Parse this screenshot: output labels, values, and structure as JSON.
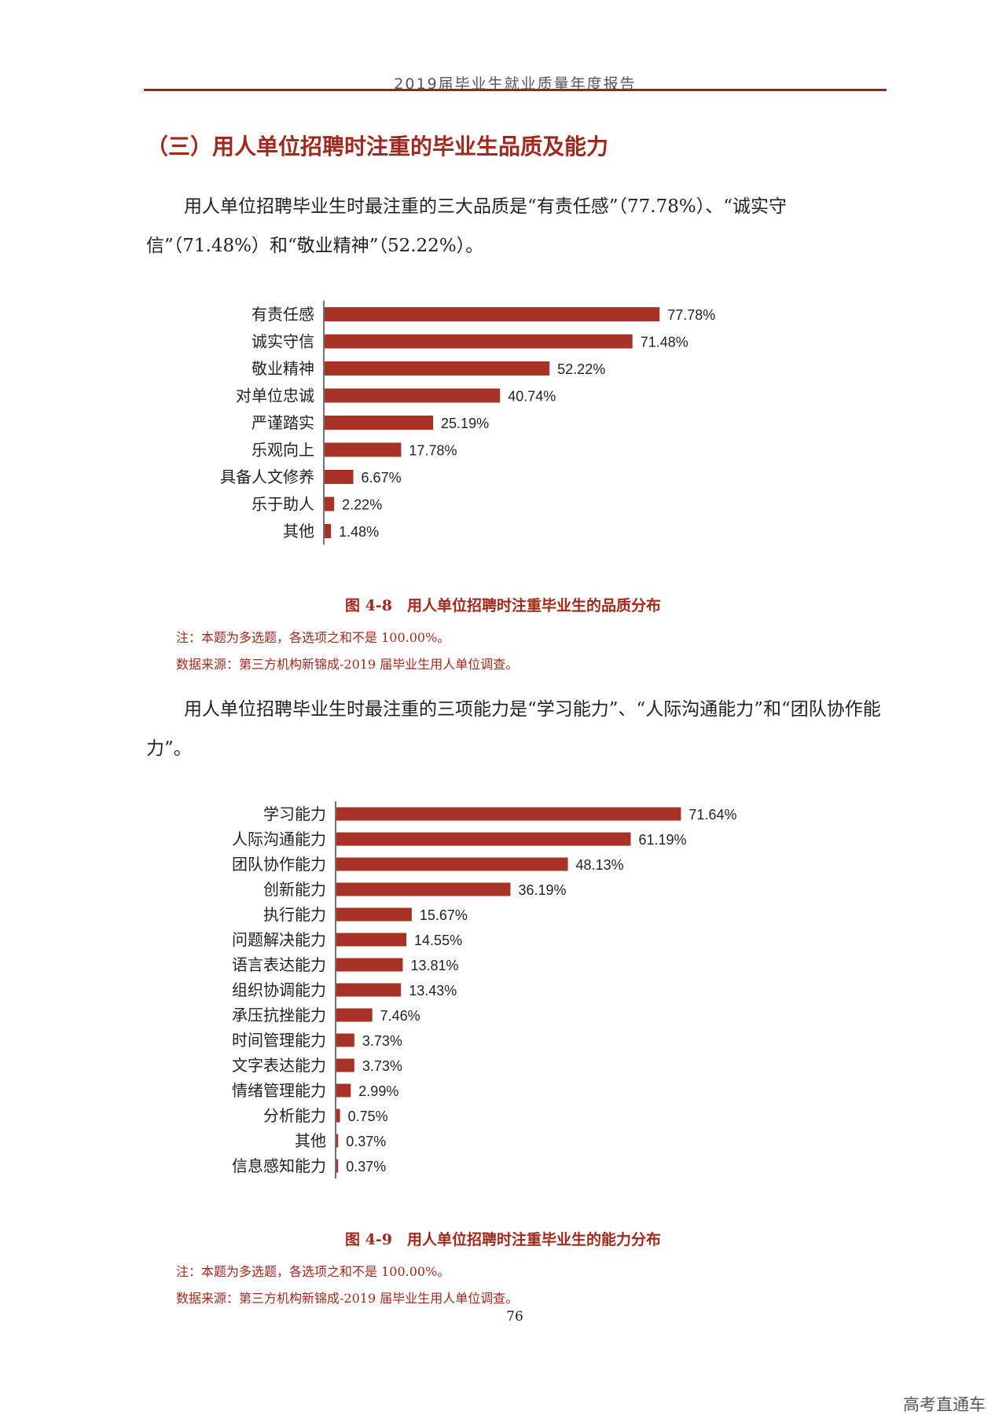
{
  "header": {
    "title": "2019届毕业生就业质量年度报告"
  },
  "section": {
    "title": "（三）用人单位招聘时注重的毕业生品质及能力"
  },
  "para1": "用人单位招聘毕业生时最注重的三大品质是“有责任感”（77.78%）、“诚实守信”（71.48%）和“敬业精神”（52.22%）。",
  "para2": "用人单位招聘毕业生时最注重的三项能力是“学习能力”、“人际沟通能力”和“团队协作能力”。",
  "figures": [
    {
      "caption": "图 4-8　用人单位招聘时注重毕业生的品质分布",
      "note": "注：本题为多选题，各选项之和不是 100.00%。",
      "source": "数据来源：第三方机构新锦成-2019 届毕业生用人单位调查。"
    },
    {
      "caption": "图 4-9　用人单位招聘时注重毕业生的能力分布",
      "note": "注：本题为多选题，各选项之和不是 100.00%。",
      "source": "数据来源：第三方机构新锦成-2019 届毕业生用人单位调查。"
    }
  ],
  "chart_data": [
    {
      "type": "bar",
      "orientation": "horizontal",
      "bar_color": "#a93226",
      "value_format": "percent",
      "categories": [
        "有责任感",
        "诚实守信",
        "敬业精神",
        "对单位忠诚",
        "严谨踏实",
        "乐观向上",
        "具备人文修养",
        "乐于助人",
        "其他"
      ],
      "values": [
        77.78,
        71.48,
        52.22,
        40.74,
        25.19,
        17.78,
        6.67,
        2.22,
        1.48
      ],
      "value_labels": [
        "77.78%",
        "71.48%",
        "52.22%",
        "40.74%",
        "25.19%",
        "17.78%",
        "6.67%",
        "2.22%",
        "1.48%"
      ]
    },
    {
      "type": "bar",
      "orientation": "horizontal",
      "bar_color": "#a93226",
      "value_format": "percent",
      "categories": [
        "学习能力",
        "人际沟通能力",
        "团队协作能力",
        "创新能力",
        "执行能力",
        "问题解决能力",
        "语言表达能力",
        "组织协调能力",
        "承压抗挫能力",
        "时间管理能力",
        "文字表达能力",
        "情绪管理能力",
        "分析能力",
        "其他",
        "信息感知能力"
      ],
      "values": [
        71.64,
        61.19,
        48.13,
        36.19,
        15.67,
        14.55,
        13.81,
        13.43,
        7.46,
        3.73,
        3.73,
        2.99,
        0.75,
        0.37,
        0.37
      ],
      "value_labels": [
        "71.64%",
        "61.19%",
        "48.13%",
        "36.19%",
        "15.67%",
        "14.55%",
        "13.81%",
        "13.43%",
        "7.46%",
        "3.73%",
        "3.73%",
        "2.99%",
        "0.75%",
        "0.37%",
        "0.37%"
      ]
    }
  ],
  "page_number": "76",
  "watermark": "高考直通车"
}
